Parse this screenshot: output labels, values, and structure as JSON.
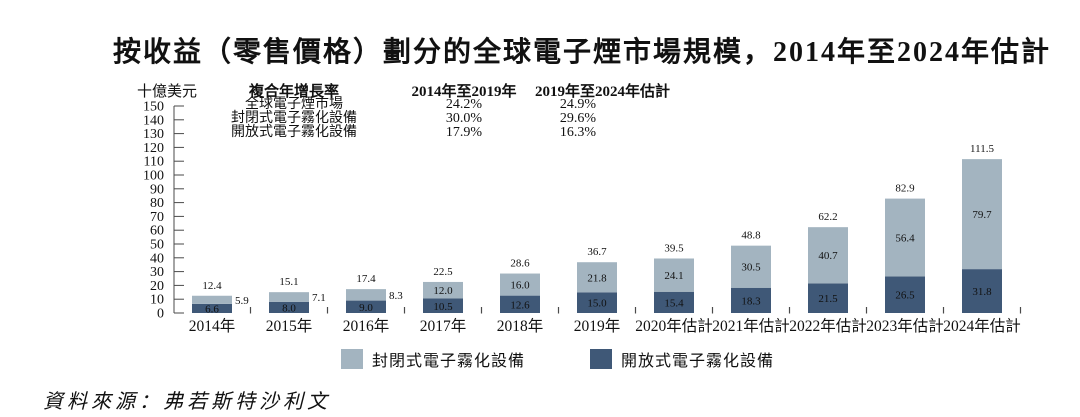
{
  "title": "按收益（零售價格）劃分的全球電子煙市場規模，2014年至2024年估計",
  "y_axis": {
    "unit": "十億美元",
    "min": 0,
    "max": 150,
    "step": 10
  },
  "cagr_table": {
    "col_headers": [
      "複合年增長率",
      "2014年至2019年",
      "2019年至2024年估計"
    ],
    "rows": [
      {
        "label": "全球電子煙市場",
        "cagr_2014_2019": "24.2%",
        "cagr_2019_2024": "24.9%"
      },
      {
        "label": "封閉式電子霧化設備",
        "cagr_2014_2019": "30.0%",
        "cagr_2019_2024": "29.6%"
      },
      {
        "label": "開放式電子霧化設備",
        "cagr_2014_2019": "17.9%",
        "cagr_2019_2024": "16.3%"
      }
    ]
  },
  "chart_data": {
    "type": "bar",
    "stacked": true,
    "unit": "十億美元",
    "categories": [
      "2014年",
      "2015年",
      "2016年",
      "2017年",
      "2018年",
      "2019年",
      "2020年估計",
      "2021年估計",
      "2022年估計",
      "2023年估計",
      "2024年估計"
    ],
    "series": [
      {
        "name": "開放式電子霧化設備",
        "position": "bottom",
        "color": "#3f5877",
        "values": [
          6.6,
          8.0,
          9.0,
          10.5,
          12.6,
          15.0,
          15.4,
          18.3,
          21.5,
          26.5,
          31.8
        ]
      },
      {
        "name": "封閉式電子霧化設備",
        "position": "top",
        "color": "#a3b4c0",
        "values": [
          5.9,
          7.1,
          8.3,
          12.0,
          16.0,
          21.8,
          24.1,
          30.5,
          40.7,
          56.4,
          79.7
        ]
      }
    ],
    "totals": [
      12.4,
      15.1,
      17.4,
      22.5,
      28.6,
      36.7,
      39.5,
      48.8,
      62.2,
      82.9,
      111.5
    ],
    "ylim": [
      0,
      150
    ],
    "y_tick_step": 10,
    "grid": false,
    "legend_position": "bottom"
  },
  "legend": {
    "items": [
      {
        "label": "封閉式電子霧化設備",
        "color": "#a3b4c0"
      },
      {
        "label": "開放式電子霧化設備",
        "color": "#3f5877"
      }
    ]
  },
  "source": "資料來源：弗若斯特沙利文"
}
